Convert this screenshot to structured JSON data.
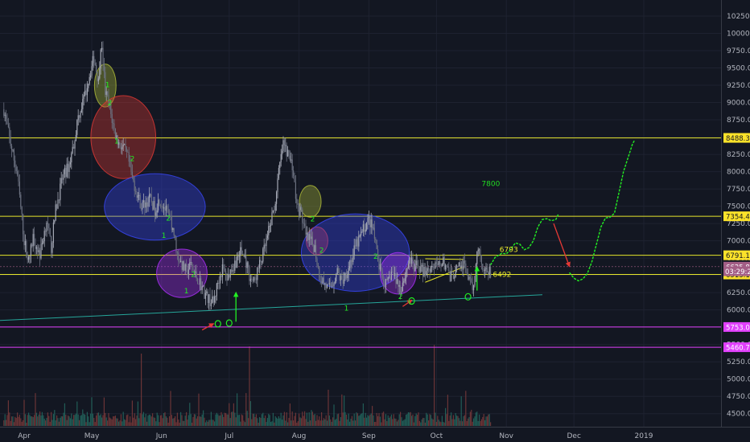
{
  "chart_data": {
    "type": "candlestick",
    "title": "",
    "ylim": [
      4400,
      10500
    ],
    "y_ticks": [
      4500,
      4750,
      5000,
      5250,
      5500,
      5750,
      6000,
      6250,
      6500,
      6750,
      7000,
      7250,
      7500,
      7750,
      8000,
      8250,
      8500,
      8750,
      9000,
      9250,
      9500,
      9750,
      10000,
      10250
    ],
    "y_tick_labels": [
      "4500.0",
      "4750.0",
      "5000.0",
      "5250.0",
      "5500.0",
      "5750.0",
      "6000.0",
      "6250.0",
      "6500.0",
      "6750.0",
      "7000.0",
      "7250.0",
      "7500.0",
      "7750.0",
      "8000.0",
      "8250.0",
      "8500.0",
      "8750.0",
      "9000.0",
      "9250.0",
      "9500.0",
      "9750.0",
      "10000.0",
      "10250.0"
    ],
    "x_ticks": [
      {
        "label": "Apr",
        "day": 0
      },
      {
        "label": "May",
        "day": 30
      },
      {
        "label": "Jun",
        "day": 61
      },
      {
        "label": "Jul",
        "day": 91
      },
      {
        "label": "Aug",
        "day": 122
      },
      {
        "label": "Sep",
        "day": 153
      },
      {
        "label": "Oct",
        "day": 183
      },
      {
        "label": "Nov",
        "day": 214
      },
      {
        "label": "Dec",
        "day": 244
      },
      {
        "label": "2019",
        "day": 275
      }
    ],
    "price_path": [
      [
        -9,
        8900
      ],
      [
        -6,
        8400
      ],
      [
        -3,
        7950
      ],
      [
        0,
        7000
      ],
      [
        2,
        6700
      ],
      [
        4,
        7050
      ],
      [
        7,
        6800
      ],
      [
        10,
        7300
      ],
      [
        12,
        6900
      ],
      [
        14,
        7450
      ],
      [
        17,
        7900
      ],
      [
        20,
        8100
      ],
      [
        22,
        8400
      ],
      [
        24,
        8800
      ],
      [
        27,
        9100
      ],
      [
        29,
        9400
      ],
      [
        31,
        9650
      ],
      [
        33,
        9300
      ],
      [
        34,
        9850
      ],
      [
        35,
        9600
      ],
      [
        36,
        9150
      ],
      [
        37,
        9050
      ],
      [
        38,
        8900
      ],
      [
        40,
        8600
      ],
      [
        42,
        8400
      ],
      [
        44,
        8350
      ],
      [
        46,
        8200
      ],
      [
        48,
        7900
      ],
      [
        50,
        7700
      ],
      [
        52,
        7500
      ],
      [
        54,
        7550
      ],
      [
        56,
        7600
      ],
      [
        58,
        7450
      ],
      [
        60,
        7600
      ],
      [
        62,
        7500
      ],
      [
        64,
        7350
      ],
      [
        66,
        7200
      ],
      [
        68,
        6800
      ],
      [
        70,
        6650
      ],
      [
        72,
        6550
      ],
      [
        74,
        6650
      ],
      [
        76,
        6500
      ],
      [
        78,
        6400
      ],
      [
        80,
        6250
      ],
      [
        82,
        6150
      ],
      [
        84,
        6100
      ],
      [
        86,
        6400
      ],
      [
        88,
        6600
      ],
      [
        90,
        6450
      ],
      [
        92,
        6600
      ],
      [
        94,
        6700
      ],
      [
        96,
        6850
      ],
      [
        98,
        6750
      ],
      [
        100,
        6500
      ],
      [
        102,
        6400
      ],
      [
        104,
        6600
      ],
      [
        106,
        6800
      ],
      [
        108,
        7050
      ],
      [
        110,
        7350
      ],
      [
        112,
        7650
      ],
      [
        113,
        8000
      ],
      [
        115,
        8400
      ],
      [
        117,
        8250
      ],
      [
        119,
        8100
      ],
      [
        121,
        7500
      ],
      [
        123,
        7400
      ],
      [
        125,
        7050
      ],
      [
        127,
        7000
      ],
      [
        129,
        6900
      ],
      [
        131,
        6500
      ],
      [
        133,
        6400
      ],
      [
        135,
        6300
      ],
      [
        137,
        6400
      ],
      [
        139,
        6550
      ],
      [
        141,
        6400
      ],
      [
        143,
        6550
      ],
      [
        145,
        6700
      ],
      [
        147,
        6900
      ],
      [
        149,
        7050
      ],
      [
        151,
        7200
      ],
      [
        153,
        7300
      ],
      [
        155,
        7150
      ],
      [
        157,
        6700
      ],
      [
        159,
        6450
      ],
      [
        161,
        6350
      ],
      [
        163,
        6550
      ],
      [
        165,
        6450
      ],
      [
        167,
        6300
      ],
      [
        169,
        6500
      ],
      [
        171,
        6750
      ],
      [
        173,
        6600
      ],
      [
        175,
        6650
      ],
      [
        177,
        6550
      ],
      [
        179,
        6600
      ],
      [
        181,
        6650
      ],
      [
        183,
        6600
      ],
      [
        185,
        6700
      ],
      [
        187,
        6650
      ],
      [
        189,
        6450
      ],
      [
        191,
        6550
      ],
      [
        193,
        6600
      ],
      [
        195,
        6650
      ],
      [
        197,
        6500
      ],
      [
        199,
        6250
      ],
      [
        200,
        6550
      ],
      [
        201,
        6900
      ],
      [
        202,
        6850
      ],
      [
        203,
        6700
      ],
      [
        204,
        6600
      ],
      [
        205,
        6550
      ],
      [
        206,
        6560
      ],
      [
        207,
        6520
      ]
    ],
    "projection_path": [
      [
        207,
        6650
      ],
      [
        209,
        6760
      ],
      [
        212,
        6820
      ],
      [
        214,
        6810
      ],
      [
        216,
        6880
      ],
      [
        218,
        6970
      ],
      [
        220,
        6950
      ],
      [
        222,
        6870
      ],
      [
        224,
        6900
      ],
      [
        226,
        7000
      ],
      [
        228,
        7200
      ],
      [
        230,
        7310
      ],
      [
        232,
        7320
      ],
      [
        234,
        7290
      ],
      [
        236,
        7310
      ],
      [
        237,
        7380
      ]
    ],
    "projection_path_2": [
      [
        242,
        6540
      ],
      [
        244,
        6460
      ],
      [
        246,
        6420
      ],
      [
        248,
        6450
      ],
      [
        250,
        6530
      ],
      [
        252,
        6700
      ],
      [
        254,
        6950
      ],
      [
        256,
        7200
      ],
      [
        258,
        7330
      ],
      [
        260,
        7340
      ],
      [
        262,
        7400
      ],
      [
        264,
        7700
      ],
      [
        266,
        8000
      ],
      [
        268,
        8200
      ],
      [
        270,
        8400
      ],
      [
        271,
        8460
      ]
    ],
    "volume_spikes": [
      [
        52,
        5.0
      ],
      [
        100,
        5.5
      ],
      [
        182,
        5.6
      ],
      [
        229,
        7.0
      ]
    ],
    "horizontal_lines": [
      {
        "price": 8488.3,
        "label": "8488.3",
        "color": "#e6e62b",
        "label_bg": "#fbe22a",
        "label_fg": "#131722"
      },
      {
        "price": 7354.4,
        "label": "7354.4",
        "color": "#e6e62b",
        "label_bg": "#fbe22a",
        "label_fg": "#131722"
      },
      {
        "price": 6791.1,
        "label": "6791.1",
        "color": "#e6e62b",
        "label_bg": "#fbe22a",
        "label_fg": "#131722"
      },
      {
        "price": 6513.1,
        "label": "6513.1",
        "color": "#e6e62b",
        "label_bg": "#fbe22a",
        "label_fg": "#131722"
      },
      {
        "price": 5753.0,
        "label": "5753.0",
        "color": "#e040fb",
        "label_bg": "#e040fb",
        "label_fg": "#ffffff"
      },
      {
        "price": 5460.7,
        "label": "5460.7",
        "color": "#e040fb",
        "label_bg": "#e040fb",
        "label_fg": "#ffffff"
      }
    ],
    "current_price": {
      "price": 6625.8,
      "label": "6625.8",
      "bg": "#a35e86",
      "fg": "#ffffff"
    },
    "countdown": {
      "price": 6560,
      "label": "03:29:22",
      "bg": "#a35e86",
      "fg": "#ffffff"
    },
    "trendline": {
      "from": [
        -48,
        5790
      ],
      "to": [
        230,
        6220
      ],
      "color": "#26a69a"
    },
    "ellipses": [
      {
        "day": 36,
        "price": 9245,
        "rx_days": 3,
        "ry_price": 310,
        "color": "#b5c23a"
      },
      {
        "day": 44,
        "price": 8500,
        "rx_days": 9,
        "ry_price": 600,
        "color": "#e53935"
      },
      {
        "day": 58,
        "price": 7490,
        "rx_days": 14,
        "ry_price": 480,
        "color": "#3949ff"
      },
      {
        "day": 70,
        "price": 6530,
        "rx_days": 7,
        "ry_price": 350,
        "color": "#b030ff"
      },
      {
        "day": 127,
        "price": 7570,
        "rx_days": 3,
        "ry_price": 230,
        "color": "#b5c23a"
      },
      {
        "day": 130,
        "price": 7000,
        "rx_days": 3,
        "ry_price": 200,
        "color": "#e53935"
      },
      {
        "day": 147,
        "price": 6830,
        "rx_days": 15,
        "ry_price": 560,
        "color": "#3949ff"
      },
      {
        "day": 166,
        "price": 6530,
        "rx_days": 5,
        "ry_price": 300,
        "color": "#b030ff"
      }
    ],
    "wave_labels": [
      {
        "label": "1",
        "day": 36,
        "price": 9220
      },
      {
        "label": "2",
        "day": 37,
        "price": 8960
      },
      {
        "label": "1",
        "day": 40,
        "price": 8410
      },
      {
        "label": "2",
        "day": 47,
        "price": 8150
      },
      {
        "label": "2",
        "day": 63,
        "price": 7290
      },
      {
        "label": "1",
        "day": 61,
        "price": 7040
      },
      {
        "label": "2",
        "day": 74,
        "price": 6480
      },
      {
        "label": "1",
        "day": 71,
        "price": 6240
      },
      {
        "label": "2",
        "day": 127,
        "price": 7280
      },
      {
        "label": "2",
        "day": 131,
        "price": 6830
      },
      {
        "label": "2",
        "day": 155,
        "price": 6740
      },
      {
        "label": "1",
        "day": 142,
        "price": 5990
      },
      {
        "label": "2",
        "day": 166,
        "price": 6160
      }
    ],
    "price_annotations": [
      {
        "label": "7800",
        "day": 203,
        "price": 7790,
        "color": "#22dd22"
      },
      {
        "label": "6793",
        "day": 211,
        "price": 6840,
        "color": "#e6e62b"
      },
      {
        "label": "6492",
        "day": 208,
        "price": 6480,
        "color": "#e6e62b"
      }
    ],
    "green_up_arrows": [
      {
        "day": 94,
        "from": 5830,
        "to": 6250
      },
      {
        "day": 201,
        "from": 6280,
        "to": 6620
      }
    ],
    "red_arrows": [
      {
        "from": [
          79,
          5710
        ],
        "to": [
          84,
          5800
        ]
      },
      {
        "from": [
          168,
          6050
        ],
        "to": [
          172,
          6140
        ]
      },
      {
        "from": [
          235,
          7250
        ],
        "to": [
          242,
          6630
        ]
      }
    ],
    "green_circles": [
      {
        "day": 86,
        "price": 5800
      },
      {
        "day": 91,
        "price": 5810
      },
      {
        "day": 172,
        "price": 6130
      },
      {
        "day": 197,
        "price": 6190
      }
    ],
    "wedge_lines": [
      {
        "from": [
          178,
          6400
        ],
        "to": [
          195,
          6620
        ]
      },
      {
        "from": [
          178,
          6740
        ],
        "to": [
          195,
          6730
        ]
      }
    ],
    "colors": {
      "background": "#131722",
      "grid": "#1e2230",
      "up_candle": "#a4a8b4",
      "down_candle": "#6b7180",
      "volume": "#23695f",
      "volume_alt": "#7a3a3a"
    }
  }
}
